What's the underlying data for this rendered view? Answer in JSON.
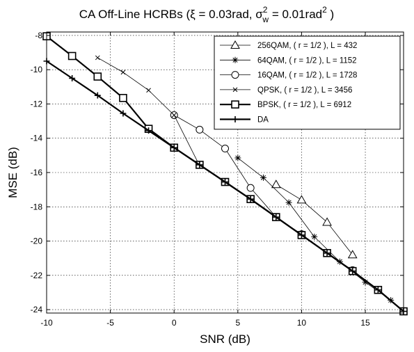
{
  "chart_data": {
    "type": "line",
    "title_parts": {
      "prefix": "CA Off-Line HCRBs (",
      "xi": "ξ",
      "xi_value": " = 0.03rad, ",
      "sigma": "σ",
      "sigma_sup": "2",
      "sigma_sub": "w",
      "sigma_value": " = 0.01rad",
      "unit_sup": "2",
      "suffix": " )"
    },
    "xlabel": "SNR (dB)",
    "ylabel": "MSE (dB)",
    "xlim": [
      -10,
      18
    ],
    "ylim": [
      -24.2,
      -7.8
    ],
    "xticks": [
      -10,
      -5,
      0,
      5,
      10,
      15
    ],
    "yticks": [
      -8,
      -10,
      -12,
      -14,
      -16,
      -18,
      -20,
      -22,
      -24
    ],
    "grid": true,
    "legend_position": "top-right",
    "series": [
      {
        "name": "256QAM,  ( r = 1/2 ), L = 432",
        "marker": "triangle",
        "line_width": 0.8,
        "x": [
          8,
          10,
          12,
          14
        ],
        "y": [
          -16.7,
          -17.6,
          -18.9,
          -20.8
        ]
      },
      {
        "name": "64QAM,  ( r = 1/2 ), L = 1152",
        "marker": "star",
        "line_width": 0.8,
        "x": [
          5,
          7,
          9,
          11,
          13,
          15,
          17
        ],
        "y": [
          -15.15,
          -16.3,
          -17.75,
          -19.75,
          -21.2,
          -22.4,
          -23.45
        ]
      },
      {
        "name": "16QAM,  ( r = 1/2 ), L = 1728",
        "marker": "circle",
        "line_width": 0.8,
        "x": [
          0,
          2,
          4,
          6,
          8,
          10,
          12,
          14,
          16,
          18
        ],
        "y": [
          -12.65,
          -13.5,
          -14.6,
          -16.9,
          -18.6,
          -19.6,
          -20.7,
          -21.7,
          -22.85,
          -24.1
        ]
      },
      {
        "name": "QPSK,  ( r = 1/2 ), L = 3456",
        "marker": "x",
        "line_width": 0.8,
        "x": [
          -6,
          -4,
          -2,
          0,
          2,
          4,
          6,
          8,
          10,
          12,
          14,
          16,
          18
        ],
        "y": [
          -9.3,
          -10.15,
          -11.2,
          -12.65,
          -15.6,
          -16.5,
          -17.55,
          -18.6,
          -19.6,
          -20.7,
          -21.7,
          -22.85,
          -24.1
        ]
      },
      {
        "name": "BPSK,  ( r = 1/2 ), L = 6912",
        "marker": "square",
        "line_width": 2.2,
        "x": [
          -10,
          -8,
          -6,
          -4,
          -2,
          0,
          2,
          4,
          6,
          8,
          10,
          12,
          14,
          16,
          18
        ],
        "y": [
          -8.05,
          -9.2,
          -10.4,
          -11.65,
          -13.45,
          -14.55,
          -15.55,
          -16.55,
          -17.55,
          -18.6,
          -19.65,
          -20.7,
          -21.75,
          -22.85,
          -24.1
        ]
      },
      {
        "name": "DA",
        "marker": "plus",
        "line_width": 2.2,
        "x": [
          -10,
          -8,
          -6,
          -4,
          -2,
          0,
          2,
          4,
          6,
          8,
          10,
          12,
          14,
          16,
          18
        ],
        "y": [
          -9.5,
          -10.5,
          -11.5,
          -12.55,
          -13.55,
          -14.55,
          -15.55,
          -16.55,
          -17.55,
          -18.6,
          -19.65,
          -20.7,
          -21.75,
          -22.85,
          -24.1
        ]
      }
    ]
  }
}
